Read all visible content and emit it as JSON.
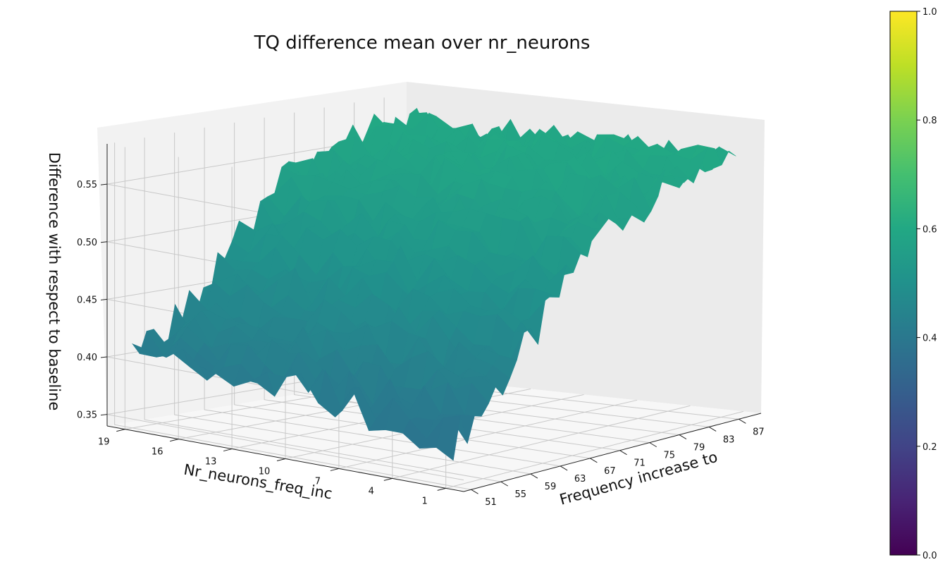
{
  "chart_data": {
    "type": "surface3d",
    "title": "TQ difference mean over nr_neurons",
    "xlabel": "Frequency increase to",
    "ylabel": "Nr_neurons_freq_inc",
    "zlabel": "Difference with respect to baseline",
    "x_ticks": [
      "51",
      "55",
      "59",
      "63",
      "67",
      "71",
      "75",
      "79",
      "83",
      "87"
    ],
    "y_ticks": [
      "1",
      "4",
      "7",
      "10",
      "13",
      "16",
      "19"
    ],
    "z_ticks": [
      "0.35",
      "0.40",
      "0.45",
      "0.50",
      "0.55"
    ],
    "x_range": [
      50,
      90
    ],
    "y_range": [
      0,
      20
    ],
    "z_range": [
      0.34,
      0.585
    ],
    "colormap": "viridis",
    "colorbar": {
      "range": [
        0.0,
        1.0
      ],
      "ticks": [
        "0.0",
        "0.2",
        "0.4",
        "0.6",
        "0.8",
        "1.0"
      ]
    },
    "surface_z_approx": {
      "x_at_y1": [
        0.38,
        0.4,
        0.43,
        0.46,
        0.5,
        0.53,
        0.54,
        0.55,
        0.56,
        0.56
      ],
      "x_at_y10": [
        0.4,
        0.42,
        0.45,
        0.48,
        0.51,
        0.53,
        0.55,
        0.56,
        0.56,
        0.56
      ],
      "x_at_y19": [
        0.4,
        0.42,
        0.44,
        0.47,
        0.5,
        0.53,
        0.54,
        0.55,
        0.56,
        0.56
      ]
    },
    "grid": true
  }
}
